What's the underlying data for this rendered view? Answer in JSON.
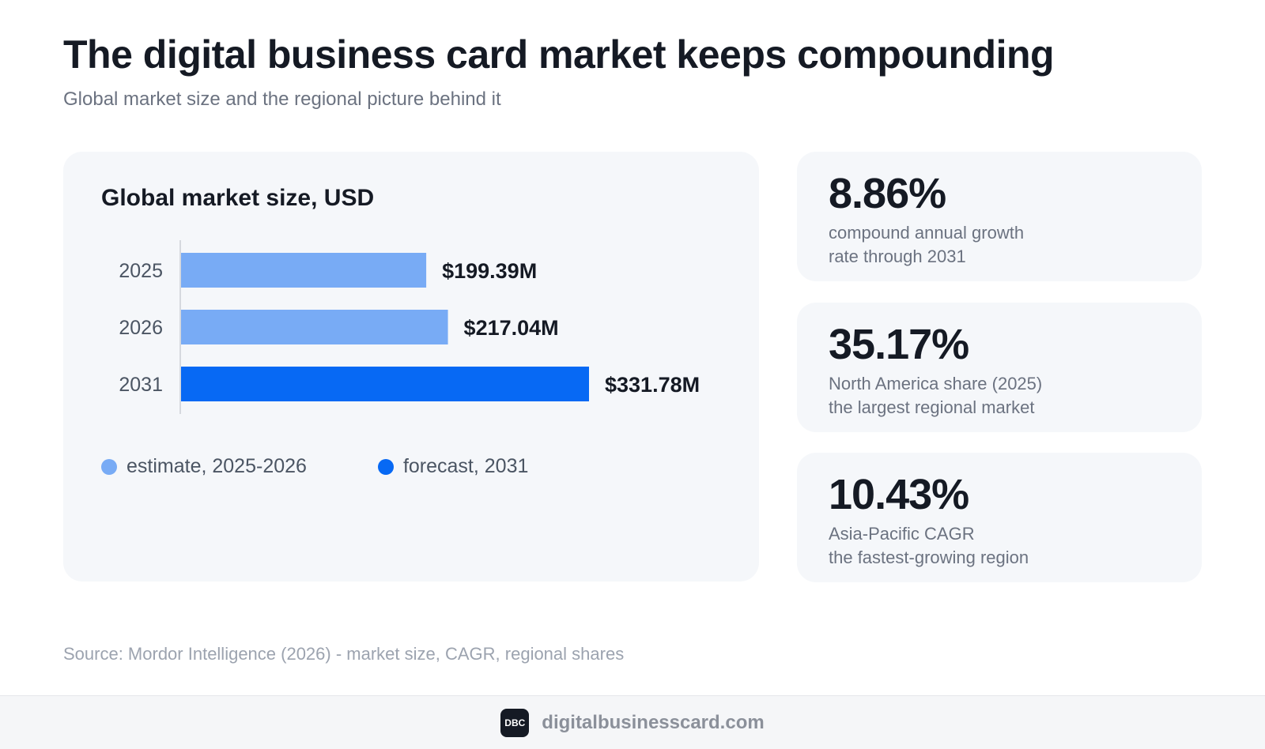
{
  "header": {
    "title": "The digital business card market keeps compounding",
    "subtitle": "Global market size and the regional picture behind it"
  },
  "chart_data": {
    "type": "bar",
    "orientation": "horizontal",
    "title": "Global market size, USD",
    "categories": [
      "2025",
      "2026",
      "2031"
    ],
    "values": [
      199.39,
      217.04,
      331.78
    ],
    "value_labels": [
      "$199.39M",
      "$217.04M",
      "$331.78M"
    ],
    "unit": "USD millions",
    "bar_colors": [
      "#78abf5",
      "#78abf5",
      "#0769f4"
    ],
    "legend": [
      {
        "label": "estimate, 2025-2026",
        "color": "#78abf5"
      },
      {
        "label": "forecast, 2031",
        "color": "#0769f4"
      }
    ],
    "legend_position": "bottom-left",
    "grid": false
  },
  "stats": [
    {
      "value": "8.86%",
      "line1": "compound annual growth",
      "line2": "rate through 2031"
    },
    {
      "value": "35.17%",
      "line1": "North America share (2025)",
      "line2": "the largest regional market"
    },
    {
      "value": "10.43%",
      "line1": "Asia-Pacific CAGR",
      "line2": "the fastest-growing region"
    }
  ],
  "source": "Source: Mordor Intelligence (2026) - market size, CAGR, regional shares",
  "footer": {
    "logo_text": "DBC",
    "domain": "digitalbusinesscard.com"
  }
}
